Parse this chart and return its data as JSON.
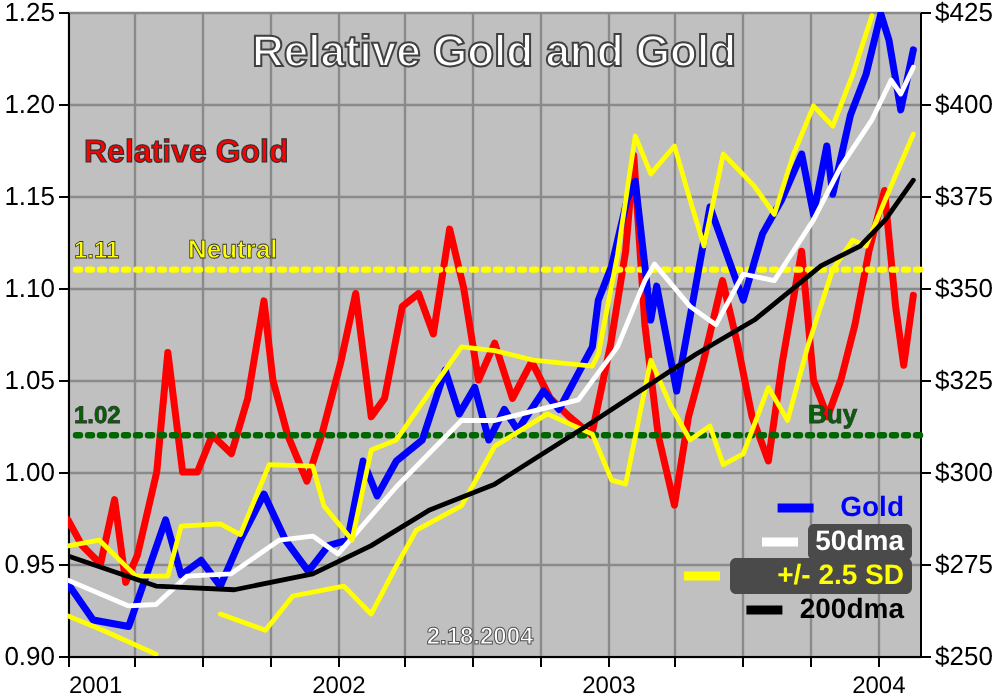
{
  "chart_data": {
    "type": "line",
    "title": "Relative Gold and Gold",
    "annotations": [
      "2.18.2004",
      {
        "text": "1.11",
        "x": "2001-01-01",
        "y": 1.11
      },
      {
        "text": "1.02",
        "x": "2001-01-01",
        "y": 1.02
      }
    ],
    "xlim": [
      "2001-01-01",
      "2004-02-27"
    ],
    "xticks": [
      {
        "value": "2001-01-01",
        "label": "2001"
      },
      {
        "value": "2001-04-01",
        "label": null
      },
      {
        "value": "2001-07-01",
        "label": null
      },
      {
        "value": "2001-10-01",
        "label": null
      },
      {
        "value": "2002-01-01",
        "label": "2002"
      },
      {
        "value": "2002-04-01",
        "label": null
      },
      {
        "value": "2002-07-01",
        "label": null
      },
      {
        "value": "2002-10-01",
        "label": null
      },
      {
        "value": "2003-01-01",
        "label": "2003"
      },
      {
        "value": "2003-04-01",
        "label": null
      },
      {
        "value": "2003-07-01",
        "label": null
      },
      {
        "value": "2003-10-01",
        "label": null
      },
      {
        "value": "2004-01-01",
        "label": "2004"
      }
    ],
    "ylim": [
      0.9,
      1.25
    ],
    "yticks": [
      {
        "value": 0.9,
        "label": "0.90"
      },
      {
        "value": 0.95,
        "label": "0.95"
      },
      {
        "value": 1.0,
        "label": "1.00"
      },
      {
        "value": 1.05,
        "label": "1.05"
      },
      {
        "value": 1.1,
        "label": "1.10"
      },
      {
        "value": 1.15,
        "label": "1.15"
      },
      {
        "value": 1.2,
        "label": "1.20"
      },
      {
        "value": 1.25,
        "label": "1.25"
      }
    ],
    "y2lim": [
      250,
      425
    ],
    "y2ticks": [
      {
        "value": 250,
        "label": "$250"
      },
      {
        "value": 275,
        "label": "$275"
      },
      {
        "value": 300,
        "label": "$300"
      },
      {
        "value": 325,
        "label": "$325"
      },
      {
        "value": 350,
        "label": "$350"
      },
      {
        "value": 375,
        "label": "$375"
      },
      {
        "value": 400,
        "label": "$400"
      },
      {
        "value": 425,
        "label": "$425"
      }
    ],
    "grid": true,
    "legend": "bottom right",
    "ref_lines": [
      {
        "axis": "y",
        "value": 1.11,
        "label": "Neutral",
        "color": "#ffff00",
        "line_style": "dotted"
      },
      {
        "axis": "y",
        "value": 1.02,
        "label": "Buy",
        "color": "#006600",
        "line_style": "dotted"
      }
    ],
    "series": [
      {
        "name": "Relative Gold",
        "color": "#ff0000",
        "x": [
          "2001-01-01",
          "2001-01-20",
          "2001-02-14",
          "2001-03-05",
          "2001-03-20",
          "2001-04-05",
          "2001-05-01",
          "2001-05-16",
          "2001-06-05",
          "2001-06-25",
          "2001-07-15",
          "2001-08-10",
          "2001-09-01",
          "2001-09-23",
          "2001-10-05",
          "2001-10-25",
          "2001-11-20",
          "2001-12-10",
          "2002-01-05",
          "2002-01-25",
          "2002-02-15",
          "2002-03-05",
          "2002-03-29",
          "2002-04-20",
          "2002-05-10",
          "2002-06-01",
          "2002-06-20",
          "2002-07-10",
          "2002-08-01",
          "2002-08-25",
          "2002-09-20",
          "2002-10-15",
          "2002-11-10",
          "2002-12-10",
          "2003-01-05",
          "2003-01-25",
          "2003-02-05",
          "2003-02-20",
          "2003-03-10",
          "2003-04-01",
          "2003-04-20",
          "2003-05-10",
          "2003-06-05",
          "2003-06-25",
          "2003-07-15",
          "2003-08-06",
          "2003-08-25",
          "2003-09-20",
          "2003-10-06",
          "2003-10-25",
          "2003-11-12",
          "2003-12-01",
          "2003-12-20",
          "2004-01-10",
          "2004-01-25",
          "2004-02-05",
          "2004-02-18"
        ],
        "values": [
          0.974,
          0.96,
          0.95,
          0.985,
          0.94,
          0.955,
          1.0,
          1.065,
          1.0,
          1.0,
          1.02,
          1.01,
          1.04,
          1.093,
          1.05,
          1.02,
          0.995,
          1.02,
          1.06,
          1.097,
          1.03,
          1.04,
          1.09,
          1.097,
          1.075,
          1.132,
          1.1,
          1.05,
          1.07,
          1.04,
          1.06,
          1.04,
          1.03,
          1.02,
          1.07,
          1.12,
          1.172,
          1.08,
          1.02,
          0.982,
          1.03,
          1.06,
          1.104,
          1.07,
          1.03,
          1.006,
          1.06,
          1.12,
          1.05,
          1.03,
          1.05,
          1.08,
          1.12,
          1.153,
          1.09,
          1.058,
          1.096
        ]
      },
      {
        "name": "Gold",
        "color": "#0000ff",
        "axis": "y2",
        "x": [
          "2001-01-01",
          "2001-02-04",
          "2001-03-24",
          "2001-05-13",
          "2001-06-03",
          "2001-06-30",
          "2001-07-26",
          "2001-08-22",
          "2001-09-23",
          "2001-10-22",
          "2001-11-22",
          "2001-12-19",
          "2002-01-14",
          "2002-02-04",
          "2002-02-23",
          "2002-03-21",
          "2002-04-25",
          "2002-05-26",
          "2002-06-14",
          "2002-07-05",
          "2002-07-24",
          "2002-08-14",
          "2002-09-01",
          "2002-10-06",
          "2002-10-27",
          "2002-12-11",
          "2002-12-19",
          "2003-01-06",
          "2003-01-27",
          "2003-02-07",
          "2003-02-20",
          "2003-02-28",
          "2003-03-08",
          "2003-04-04",
          "2003-05-19",
          "2003-07-03",
          "2003-07-29",
          "2003-08-24",
          "2003-09-20",
          "2003-10-06",
          "2003-10-24",
          "2003-11-01",
          "2003-11-25",
          "2003-12-16",
          "2004-01-05",
          "2004-01-16",
          "2004-02-01",
          "2004-02-18"
        ],
        "values": [
          269.6,
          259.8,
          258,
          287,
          272,
          276,
          269,
          281.5,
          294,
          281.5,
          273,
          280,
          281.5,
          303,
          293.5,
          303,
          308.7,
          327.7,
          315.8,
          323,
          308.7,
          317,
          311.4,
          322,
          317,
          334,
          346.7,
          356,
          374,
          379,
          356,
          341.3,
          350.5,
          322,
          372,
          346.7,
          364.7,
          374,
          386.4,
          370,
          388.6,
          375.5,
          397,
          408,
          424.5,
          417.4,
          398.4,
          414.7
        ]
      },
      {
        "name": "50dma",
        "color": "#ffffff",
        "axis": "y2",
        "x": [
          "2001-01-01",
          "2001-03-24",
          "2001-04-30",
          "2001-06-11",
          "2001-08-09",
          "2001-10-14",
          "2001-11-28",
          "2002-01-01",
          "2002-03-21",
          "2002-06-17",
          "2002-08-01",
          "2002-11-22",
          "2003-01-14",
          "2003-02-20",
          "2003-03-05",
          "2003-04-22",
          "2003-05-27",
          "2003-07-03",
          "2003-08-14",
          "2003-10-06",
          "2003-11-12",
          "2003-12-24",
          "2004-01-19",
          "2004-02-01",
          "2004-02-18"
        ],
        "values": [
          270.6,
          263.6,
          264,
          271.7,
          272.3,
          281.5,
          282.6,
          277.7,
          296,
          314,
          314,
          319.6,
          334,
          352,
          356.5,
          345,
          340,
          353.8,
          352,
          368.5,
          383,
          395.7,
          406.5,
          402.7,
          410
        ]
      },
      {
        "name": "+/- 2.5 SD",
        "color": "#ffff00",
        "axis": "y2",
        "x": [
          "2001-01-01",
          "2001-02-12",
          "2001-04-03",
          "2001-05-16",
          "2001-06-03",
          "2001-07-26",
          "2001-08-22",
          "2001-09-30",
          "2001-11-28",
          "2001-12-13",
          "2002-01-20",
          "2002-02-15",
          "2002-03-21",
          "2002-06-17",
          "2002-08-01",
          "2002-09-22",
          "2002-12-11",
          "2002-12-19",
          "2003-01-14",
          "2003-02-07",
          "2003-02-28",
          "2003-04-01",
          "2003-04-22",
          "2003-05-11",
          "2003-06-06",
          "2003-07-18",
          "2003-08-14",
          "2003-09-09",
          "2003-10-06",
          "2003-11-01",
          "2003-11-28",
          "2003-12-24"
        ],
        "values": [
          279.9,
          281.5,
          271.7,
          271.7,
          285.3,
          285.9,
          283,
          302,
          301.6,
          290.8,
          281.5,
          306,
          308.7,
          334,
          333,
          330.4,
          328.8,
          332,
          359,
          391.3,
          381,
          388.6,
          374,
          361.4,
          386.4,
          377.7,
          370,
          386.4,
          399.5,
          394,
          408,
          424
        ]
      },
      {
        "color": "#ffff00",
        "axis": "y2",
        "x": [
          "2001-01-01",
          "2001-02-17",
          "2001-04-30",
          "2001-05-16",
          "2001-07-01",
          "2001-07-26",
          "2001-09-25",
          "2001-11-01",
          "2002-01-09",
          "2002-02-15",
          "2002-03-21",
          "2002-04-17",
          "2002-06-17",
          "2002-08-01",
          "2002-10-11",
          "2002-12-11",
          "2003-01-06",
          "2003-01-25",
          "2003-02-28",
          "2003-03-27",
          "2003-04-22",
          "2003-05-19",
          "2003-06-06",
          "2003-07-03",
          "2003-08-06",
          "2003-09-01",
          "2003-09-28",
          "2003-11-01",
          "2003-11-28",
          "2003-12-16",
          "2004-01-11",
          "2004-02-18"
        ],
        "values": [
          260.9,
          257,
          250.5,
          null,
          null,
          261.4,
          257,
          266.3,
          269,
          261.4,
          274.5,
          284.2,
          290.8,
          307,
          315.8,
          310.3,
          297.8,
          296.7,
          330.4,
          318,
          308.7,
          312.5,
          302,
          304.9,
          323,
          314,
          334,
          355,
          363,
          361.4,
          374,
          391.8
        ]
      },
      {
        "name": "200dma",
        "color": "#000000",
        "axis": "y2",
        "x": [
          "2001-01-01",
          "2001-04-30",
          "2001-08-14",
          "2001-11-28",
          "2002-02-15",
          "2002-05-05",
          "2002-08-01",
          "2002-12-03",
          "2003-04-30",
          "2003-07-18",
          "2003-10-16",
          "2003-12-08",
          "2004-01-11",
          "2004-02-18"
        ],
        "values": [
          277.2,
          269,
          268,
          272.3,
          280,
          289.7,
          296.7,
          312.5,
          332,
          341.3,
          356,
          361.4,
          368.5,
          379.3
        ]
      }
    ]
  }
}
